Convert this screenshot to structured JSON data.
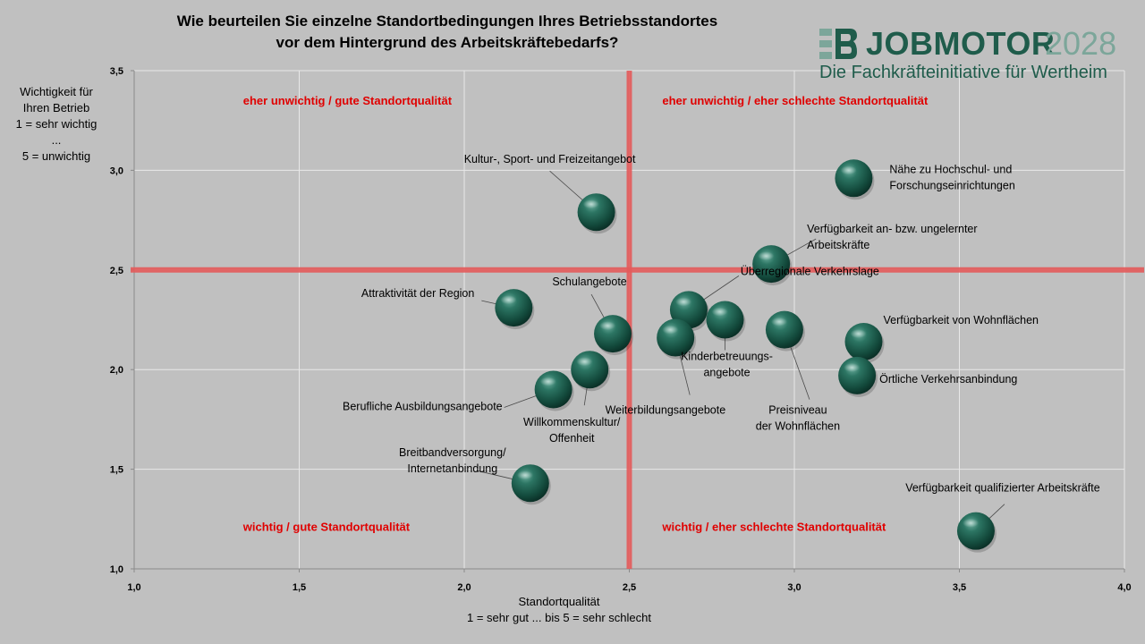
{
  "title": {
    "line1": "Wie beurteilen Sie einzelne Standortbedingungen  Ihres Betriebsstandortes",
    "line2": "vor dem Hintergrund  des Arbeitskräftebedarfs?"
  },
  "logo": {
    "word": "JOBMOTOR",
    "year": "2028",
    "subtitle": "Die Fachkräfteinitiative für Wertheim"
  },
  "colors": {
    "background": "#c0c0c0",
    "bubble": "#1f5c4b",
    "divider": "#e35a5a",
    "quadrant_text": "#e00000"
  },
  "chart_data": {
    "type": "scatter",
    "xlabel_lines": [
      "Standortqualität",
      "1 = sehr gut ... bis 5 = sehr schlecht"
    ],
    "ylabel_lines": [
      "Wichtigkeit für",
      "Ihren Betrieb",
      "1 = sehr wichtig",
      "...",
      "5 = unwichtig"
    ],
    "xlim": [
      1.0,
      4.0
    ],
    "ylim": [
      1.0,
      3.5
    ],
    "xticks": [
      "1,0",
      "1,5",
      "2,0",
      "2,5",
      "3,0",
      "3,5",
      "4,0"
    ],
    "yticks": [
      "1,0",
      "1,5",
      "2,0",
      "2,5",
      "3,0",
      "3,5"
    ],
    "grid": true,
    "dividers": {
      "x": 2.5,
      "y": 2.5
    },
    "quadrant_labels": {
      "top_left": "eher unwichtig / gute Standortqualität",
      "top_right": "eher unwichtig / eher schlechte Standortqualität",
      "bottom_left": "wichtig / gute Standortqualität",
      "bottom_right": "wichtig / eher schlechte Standortqualität"
    },
    "points": [
      {
        "label": [
          "Kultur-, Sport- und Freizeitangebot"
        ],
        "x": 2.4,
        "y": 2.79
      },
      {
        "label": [
          "Nähe zu Hochschul- und",
          "Forschungseinrichtungen"
        ],
        "x": 3.18,
        "y": 2.96
      },
      {
        "label": [
          "Verfügbarkeit an- bzw. ungelernter",
          "Arbeitskräfte"
        ],
        "x": 2.93,
        "y": 2.53
      },
      {
        "label": [
          "Attraktivität der Region"
        ],
        "x": 2.15,
        "y": 2.31
      },
      {
        "label": [
          "Schulangebote"
        ],
        "x": 2.45,
        "y": 2.18
      },
      {
        "label": [
          "Überregionale Verkehrslage"
        ],
        "x": 2.68,
        "y": 2.3
      },
      {
        "label": [
          "Kinderbetreuungs-",
          "angebote"
        ],
        "x": 2.79,
        "y": 2.25
      },
      {
        "label": [
          "Weiterbildungsangebote"
        ],
        "x": 2.64,
        "y": 2.16
      },
      {
        "label": [
          "Preisniveau",
          "der Wohnflächen"
        ],
        "x": 2.97,
        "y": 2.2
      },
      {
        "label": [
          "Verfügbarkeit von Wohnflächen"
        ],
        "x": 3.21,
        "y": 2.14
      },
      {
        "label": [
          "Örtliche Verkehrsanbindung"
        ],
        "x": 3.19,
        "y": 1.97
      },
      {
        "label": [
          "Willkommenskultur/",
          "Offenheit"
        ],
        "x": 2.38,
        "y": 2.0
      },
      {
        "label": [
          "Berufliche Ausbildungsangebote"
        ],
        "x": 2.27,
        "y": 1.9
      },
      {
        "label": [
          "Breitbandversorgung/",
          "Internetanbindung"
        ],
        "x": 2.2,
        "y": 1.43
      },
      {
        "label": [
          "Verfügbarkeit qualifizierter Arbeitskräfte"
        ],
        "x": 3.55,
        "y": 1.19
      }
    ]
  }
}
